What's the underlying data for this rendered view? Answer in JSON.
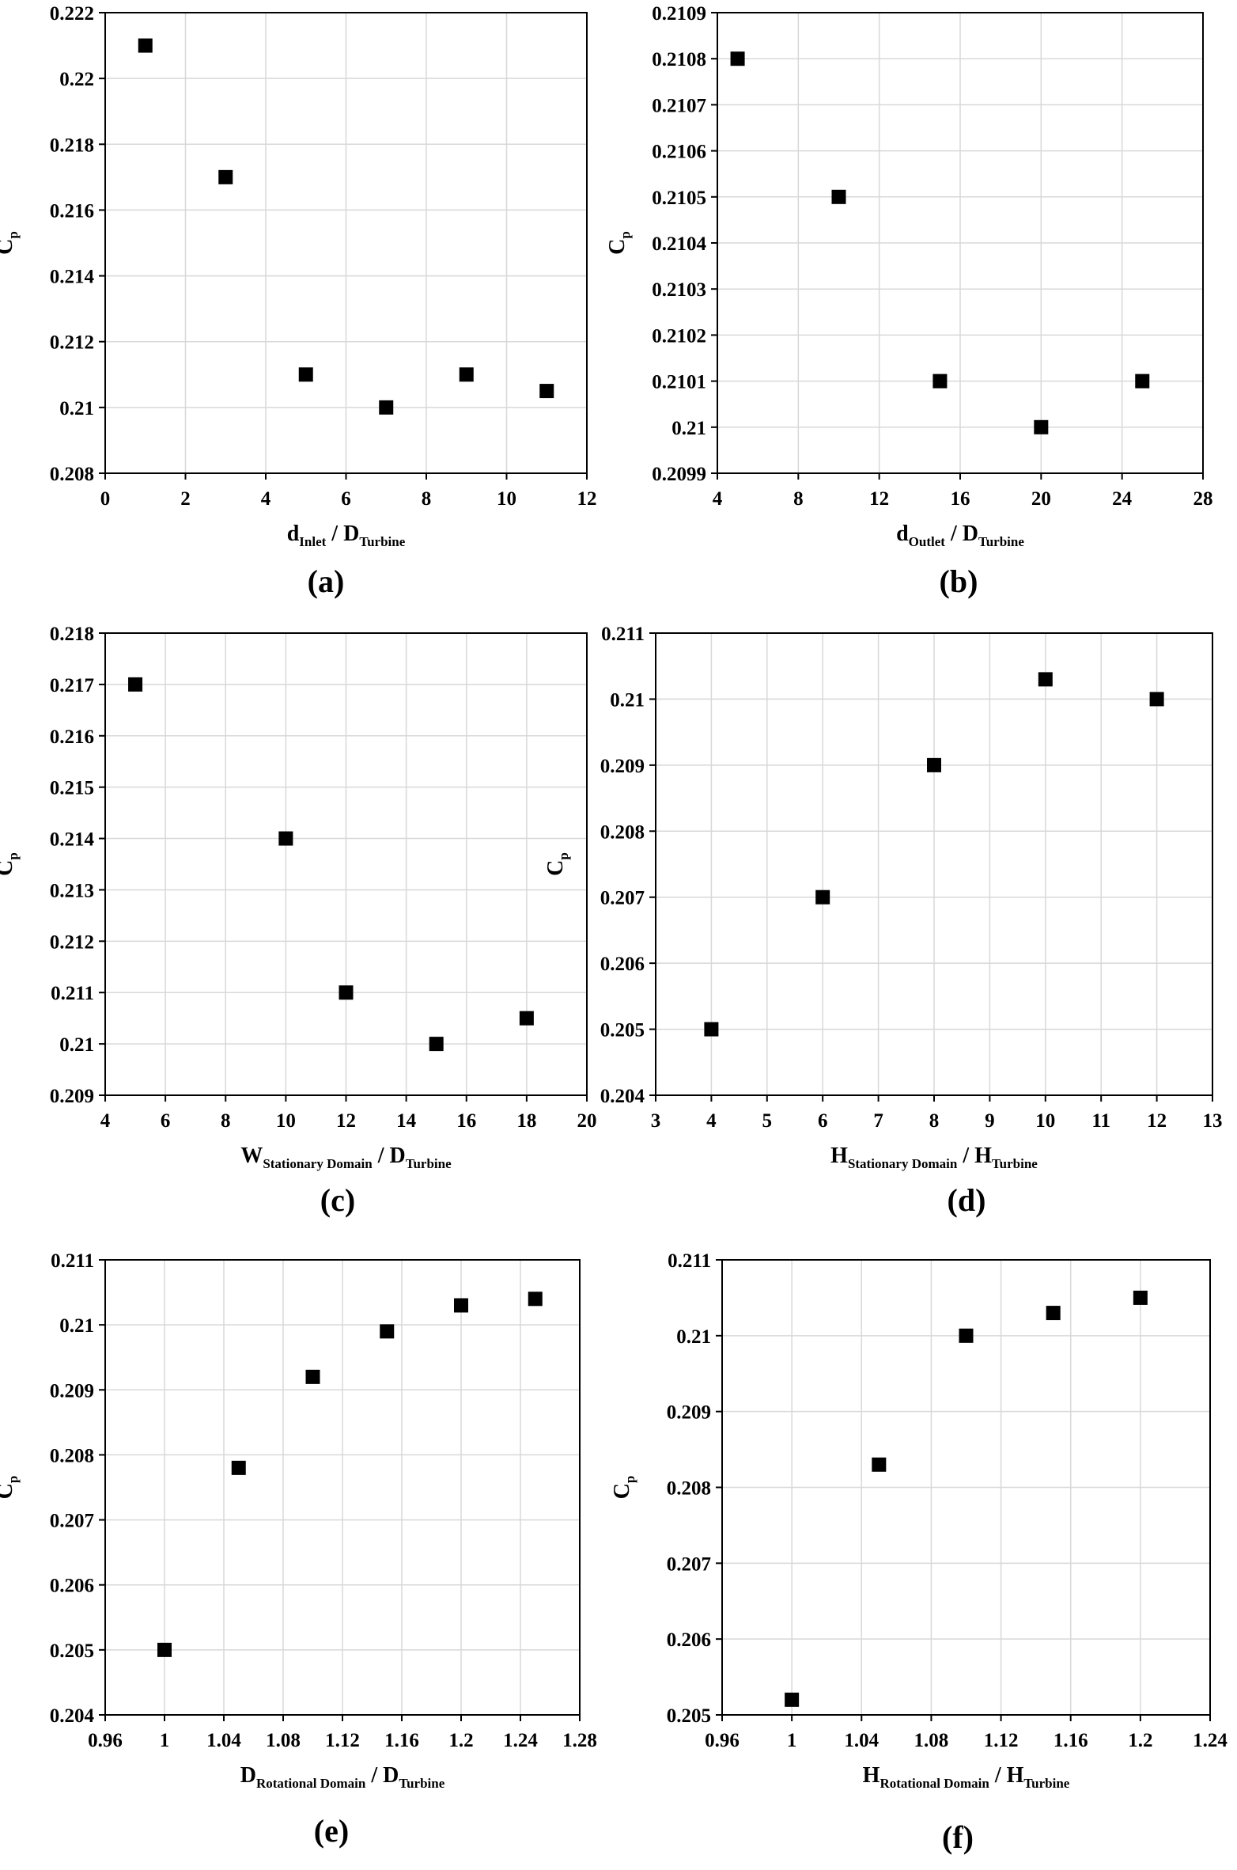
{
  "chart_data": [
    {
      "type": "scatter",
      "panel_label": "(a)",
      "xlabel": {
        "main": "d",
        "sub": "Inlet",
        "sep": "  / ",
        "main2": "D",
        "sub2": "Turbine"
      },
      "ylabel": {
        "main": "C",
        "sub": "p"
      },
      "xlim": [
        0,
        12
      ],
      "ylim": [
        0.208,
        0.222
      ],
      "xticks": [
        "0",
        "2",
        "4",
        "6",
        "8",
        "10",
        "12"
      ],
      "xtick_values": [
        0,
        2,
        4,
        6,
        8,
        10,
        12
      ],
      "yticks": [
        "0.208",
        "0.21",
        "0.212",
        "0.214",
        "0.216",
        "0.218",
        "0.22",
        "0.222"
      ],
      "ytick_values": [
        0.208,
        0.21,
        0.212,
        0.214,
        0.216,
        0.218,
        0.22,
        0.222
      ],
      "grid": true,
      "points": [
        [
          1,
          0.221
        ],
        [
          3,
          0.217
        ],
        [
          5,
          0.211
        ],
        [
          7,
          0.21
        ],
        [
          9,
          0.211
        ],
        [
          11,
          0.2105
        ]
      ]
    },
    {
      "type": "scatter",
      "panel_label": "(b)",
      "xlabel": {
        "main": "d",
        "sub": "Outlet",
        "sep": "  / ",
        "main2": "D",
        "sub2": "Turbine"
      },
      "ylabel": {
        "main": "C",
        "sub": "p"
      },
      "xlim": [
        4,
        28
      ],
      "ylim": [
        0.2099,
        0.2109
      ],
      "xticks": [
        "4",
        "8",
        "12",
        "16",
        "20",
        "24",
        "28"
      ],
      "xtick_values": [
        4,
        8,
        12,
        16,
        20,
        24,
        28
      ],
      "yticks": [
        "0.2099",
        "0.21",
        "0.2101",
        "0.2102",
        "0.2103",
        "0.2104",
        "0.2105",
        "0.2106",
        "0.2107",
        "0.2108",
        "0.2109"
      ],
      "ytick_values": [
        0.2099,
        0.21,
        0.2101,
        0.2102,
        0.2103,
        0.2104,
        0.2105,
        0.2106,
        0.2107,
        0.2108,
        0.2109
      ],
      "grid": true,
      "points": [
        [
          5,
          0.2108
        ],
        [
          10,
          0.2105
        ],
        [
          15,
          0.2101
        ],
        [
          20,
          0.21
        ],
        [
          25,
          0.2101
        ]
      ]
    },
    {
      "type": "scatter",
      "panel_label": "(c)",
      "xlabel": {
        "main": "W",
        "sub": "Stationary Domain",
        "sep": "  / ",
        "main2": "D",
        "sub2": "Turbine"
      },
      "ylabel": {
        "main": "C",
        "sub": "p"
      },
      "xlim": [
        4,
        20
      ],
      "ylim": [
        0.209,
        0.218
      ],
      "xticks": [
        "4",
        "6",
        "8",
        "10",
        "12",
        "14",
        "16",
        "18",
        "20"
      ],
      "xtick_values": [
        4,
        6,
        8,
        10,
        12,
        14,
        16,
        18,
        20
      ],
      "yticks": [
        "0.209",
        "0.21",
        "0.211",
        "0.212",
        "0.213",
        "0.214",
        "0.215",
        "0.216",
        "0.217",
        "0.218"
      ],
      "ytick_values": [
        0.209,
        0.21,
        0.211,
        0.212,
        0.213,
        0.214,
        0.215,
        0.216,
        0.217,
        0.218
      ],
      "grid": true,
      "points": [
        [
          5,
          0.217
        ],
        [
          10,
          0.214
        ],
        [
          12,
          0.211
        ],
        [
          15,
          0.21
        ],
        [
          18,
          0.2105
        ]
      ]
    },
    {
      "type": "scatter",
      "panel_label": "(d)",
      "xlabel": {
        "main": "H",
        "sub": "Stationary Domain",
        "sep": "  / ",
        "main2": "H",
        "sub2": "Turbine"
      },
      "ylabel": {
        "main": "C",
        "sub": "p"
      },
      "xlim": [
        3,
        13
      ],
      "ylim": [
        0.204,
        0.211
      ],
      "xticks": [
        "3",
        "4",
        "5",
        "6",
        "7",
        "8",
        "9",
        "10",
        "11",
        "12",
        "13"
      ],
      "xtick_values": [
        3,
        4,
        5,
        6,
        7,
        8,
        9,
        10,
        11,
        12,
        13
      ],
      "yticks": [
        "0.204",
        "0.205",
        "0.206",
        "0.207",
        "0.208",
        "0.209",
        "0.21",
        "0.211"
      ],
      "ytick_values": [
        0.204,
        0.205,
        0.206,
        0.207,
        0.208,
        0.209,
        0.21,
        0.211
      ],
      "grid": true,
      "points": [
        [
          4,
          0.205
        ],
        [
          6,
          0.207
        ],
        [
          8,
          0.209
        ],
        [
          10,
          0.2103
        ],
        [
          12,
          0.21
        ]
      ]
    },
    {
      "type": "scatter",
      "panel_label": "(e)",
      "xlabel": {
        "main": "D",
        "sub": "Rotational Domain",
        "sep": "  / ",
        "main2": "D",
        "sub2": "Turbine"
      },
      "ylabel": {
        "main": "C",
        "sub": "p"
      },
      "xlim": [
        0.96,
        1.28
      ],
      "ylim": [
        0.204,
        0.211
      ],
      "xticks": [
        "0.96",
        "1",
        "1.04",
        "1.08",
        "1.12",
        "1.16",
        "1.2",
        "1.24",
        "1.28"
      ],
      "xtick_values": [
        0.96,
        1,
        1.04,
        1.08,
        1.12,
        1.16,
        1.2,
        1.24,
        1.28
      ],
      "yticks": [
        "0.204",
        "0.205",
        "0.206",
        "0.207",
        "0.208",
        "0.209",
        "0.21",
        "0.211"
      ],
      "ytick_values": [
        0.204,
        0.205,
        0.206,
        0.207,
        0.208,
        0.209,
        0.21,
        0.211
      ],
      "grid": true,
      "points": [
        [
          1,
          0.205
        ],
        [
          1.05,
          0.2078
        ],
        [
          1.1,
          0.2092
        ],
        [
          1.15,
          0.2099
        ],
        [
          1.2,
          0.2103
        ],
        [
          1.25,
          0.2104
        ]
      ]
    },
    {
      "type": "scatter",
      "panel_label": "(f)",
      "xlabel": {
        "main": "H",
        "sub": "Rotational Domain",
        "sep": "  / ",
        "main2": "H",
        "sub2": "Turbine"
      },
      "ylabel": {
        "main": "C",
        "sub": "p"
      },
      "xlim": [
        0.96,
        1.24
      ],
      "ylim": [
        0.205,
        0.211
      ],
      "xticks": [
        "0.96",
        "1",
        "1.04",
        "1.08",
        "1.12",
        "1.16",
        "1.2",
        "1.24"
      ],
      "xtick_values": [
        0.96,
        1,
        1.04,
        1.08,
        1.12,
        1.16,
        1.2,
        1.24
      ],
      "yticks": [
        "0.205",
        "0.206",
        "0.207",
        "0.208",
        "0.209",
        "0.21",
        "0.211"
      ],
      "ytick_values": [
        0.205,
        0.206,
        0.207,
        0.208,
        0.209,
        0.21,
        0.211
      ],
      "grid": true,
      "points": [
        [
          1,
          0.2052
        ],
        [
          1.05,
          0.2083
        ],
        [
          1.1,
          0.21
        ],
        [
          1.15,
          0.2103
        ],
        [
          1.2,
          0.2105
        ]
      ]
    }
  ]
}
